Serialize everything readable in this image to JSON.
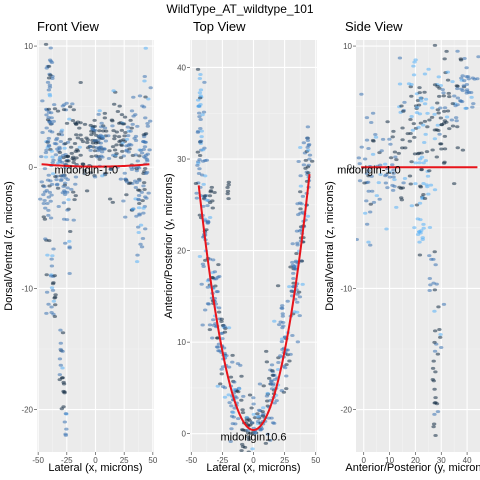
{
  "figure_title": "WildType_AT_wildtype_101",
  "chart_data": [
    {
      "type": "scatter",
      "title": "Front View",
      "xlabel": "Lateral (x, microns)",
      "ylabel": "Dorsal/Ventral (z, microns)",
      "xlim": [
        -51,
        51
      ],
      "ylim": [
        -23.5,
        10.5
      ],
      "xticks": [
        -50,
        -25,
        0,
        25,
        50
      ],
      "yticks": [
        10,
        0,
        -10,
        -20
      ],
      "grid": true,
      "annotation": {
        "text": "midorigin-1.0",
        "x": -8,
        "y": -0.2
      },
      "fit_curve": {
        "a": 9e-05,
        "b": 0,
        "c": 0.05,
        "x_range": [
          -47,
          47
        ]
      },
      "clusters": [
        {
          "cx": -42,
          "cy": 0,
          "sx": 3,
          "sy": 5,
          "n": 60,
          "shade": "mid"
        },
        {
          "cx": -40,
          "cy": 5,
          "sx": 1.5,
          "sy": 2.5,
          "n": 25,
          "shade": "mid"
        },
        {
          "cx": -32,
          "cy": 1,
          "sx": 5,
          "sy": 2.2,
          "n": 50,
          "shade": "mid"
        },
        {
          "cx": -25,
          "cy": -1.5,
          "sx": 3,
          "sy": 3,
          "n": 40,
          "shade": "mid"
        },
        {
          "cx": -18,
          "cy": 2,
          "sx": 5,
          "sy": 1.8,
          "n": 40,
          "shade": "dark"
        },
        {
          "cx": -5,
          "cy": 2,
          "sx": 6,
          "sy": 1.5,
          "n": 45,
          "shade": "dark"
        },
        {
          "cx": 5,
          "cy": 1.5,
          "sx": 6,
          "sy": 1.5,
          "n": 45,
          "shade": "mid"
        },
        {
          "cx": 18,
          "cy": 2.5,
          "sx": 5,
          "sy": 1.8,
          "n": 40,
          "shade": "dark"
        },
        {
          "cx": 30,
          "cy": 1,
          "sx": 5,
          "sy": 2,
          "n": 50,
          "shade": "mid"
        },
        {
          "cx": 38,
          "cy": -2,
          "sx": 3,
          "sy": 2.5,
          "n": 40,
          "shade": "mid"
        },
        {
          "cx": 43,
          "cy": 2,
          "sx": 2,
          "sy": 4,
          "n": 40,
          "shade": "mid"
        },
        {
          "cx": -38,
          "cy": -9,
          "sx": 1.2,
          "sy": 1.5,
          "n": 12,
          "shade": "mid"
        },
        {
          "cx": -36,
          "cy": -11,
          "sx": 1,
          "sy": 1.2,
          "n": 8,
          "shade": "dark"
        },
        {
          "cx": -30,
          "cy": -16,
          "sx": 1,
          "sy": 1.5,
          "n": 10,
          "shade": "mid"
        },
        {
          "cx": -28,
          "cy": -18.5,
          "sx": 0.8,
          "sy": 1.5,
          "n": 10,
          "shade": "dark"
        },
        {
          "cx": -26,
          "cy": -21,
          "sx": 0.6,
          "sy": 0.8,
          "n": 6,
          "shade": "mid"
        }
      ]
    },
    {
      "type": "scatter",
      "title": "Top View",
      "xlabel": "Lateral (x, microns)",
      "ylabel": "Anterior/Posterior (y, microns)",
      "xlim": [
        -51,
        51
      ],
      "ylim": [
        -2,
        43
      ],
      "xticks": [
        -50,
        -25,
        0,
        25,
        50
      ],
      "yticks": [
        0,
        10,
        20,
        30,
        40
      ],
      "grid": true,
      "annotation": {
        "text": "midorigin10.6",
        "x": 0,
        "y": -0.3
      },
      "fit_curve": {
        "a": 0.0138,
        "b": 0,
        "c": 0.4,
        "x_range": [
          -44,
          45
        ]
      },
      "clusters": [
        {
          "cx": -43,
          "cy": 31,
          "sx": 2,
          "sy": 4,
          "n": 40,
          "shade": "mid"
        },
        {
          "cx": -43,
          "cy": 38,
          "sx": 1,
          "sy": 2,
          "n": 12,
          "shade": "light"
        },
        {
          "cx": -38,
          "cy": 22,
          "sx": 2.5,
          "sy": 3,
          "n": 40,
          "shade": "mid"
        },
        {
          "cx": -32,
          "cy": 15,
          "sx": 2.5,
          "sy": 2.5,
          "n": 40,
          "shade": "mid"
        },
        {
          "cx": -25,
          "cy": 9,
          "sx": 2.5,
          "sy": 2.5,
          "n": 40,
          "shade": "mid"
        },
        {
          "cx": -15,
          "cy": 4,
          "sx": 3,
          "sy": 2,
          "n": 40,
          "shade": "mid"
        },
        {
          "cx": -5,
          "cy": 1,
          "sx": 3,
          "sy": 1.5,
          "n": 35,
          "shade": "dark"
        },
        {
          "cx": 5,
          "cy": 1.5,
          "sx": 3,
          "sy": 1.5,
          "n": 35,
          "shade": "mid"
        },
        {
          "cx": 15,
          "cy": 4.5,
          "sx": 3,
          "sy": 2,
          "n": 40,
          "shade": "mid"
        },
        {
          "cx": 25,
          "cy": 10,
          "sx": 2.5,
          "sy": 2.5,
          "n": 40,
          "shade": "mid"
        },
        {
          "cx": 33,
          "cy": 16,
          "sx": 2.5,
          "sy": 2.5,
          "n": 40,
          "shade": "mid"
        },
        {
          "cx": 39,
          "cy": 23,
          "sx": 2.5,
          "sy": 3,
          "n": 40,
          "shade": "mid"
        },
        {
          "cx": 44,
          "cy": 30,
          "sx": 1.5,
          "sy": 2,
          "n": 25,
          "shade": "mid"
        },
        {
          "cx": -33,
          "cy": 26,
          "sx": 1.5,
          "sy": 1,
          "n": 8,
          "shade": "dark"
        },
        {
          "cx": -20,
          "cy": 27,
          "sx": 1,
          "sy": 0.8,
          "n": 6,
          "shade": "dark"
        }
      ]
    },
    {
      "type": "scatter",
      "title": "Side View",
      "xlabel": "Anterior/Posterior (y, microns)",
      "ylabel": "Dorsal/Ventral (z, microns)",
      "xlim": [
        -3,
        45
      ],
      "ylim": [
        -23.5,
        10.5
      ],
      "xticks": [
        0,
        10,
        20,
        30,
        40
      ],
      "yticks": [
        10,
        0,
        -10,
        -20
      ],
      "grid": true,
      "annotation": {
        "text": "midorigin-1.0",
        "x": 2,
        "y": -0.2
      },
      "fit_curve": {
        "a": 0,
        "b": 0,
        "c": 0,
        "x_range": [
          -1,
          44
        ]
      },
      "clusters": [
        {
          "cx": 2,
          "cy": 0,
          "sx": 2.5,
          "sy": 2.5,
          "n": 40,
          "shade": "mid"
        },
        {
          "cx": 10,
          "cy": 0.5,
          "sx": 3,
          "sy": 2.5,
          "n": 40,
          "shade": "mid"
        },
        {
          "cx": 18,
          "cy": 2,
          "sx": 3,
          "sy": 3,
          "n": 45,
          "shade": "dark"
        },
        {
          "cx": 24,
          "cy": 3,
          "sx": 3,
          "sy": 3,
          "n": 50,
          "shade": "light"
        },
        {
          "cx": 30,
          "cy": 4,
          "sx": 3,
          "sy": 2.5,
          "n": 45,
          "shade": "dark"
        },
        {
          "cx": 36,
          "cy": 5.5,
          "sx": 3,
          "sy": 2,
          "n": 35,
          "shade": "mid"
        },
        {
          "cx": 40,
          "cy": 6.5,
          "sx": 2,
          "sy": 1.5,
          "n": 20,
          "shade": "mid"
        },
        {
          "cx": 22,
          "cy": -4,
          "sx": 2,
          "sy": 2,
          "n": 20,
          "shade": "light"
        },
        {
          "cx": 26,
          "cy": -9,
          "sx": 1,
          "sy": 1.5,
          "n": 10,
          "shade": "mid"
        },
        {
          "cx": 29,
          "cy": -13,
          "sx": 1,
          "sy": 1.5,
          "n": 10,
          "shade": "mid"
        },
        {
          "cx": 28,
          "cy": -16,
          "sx": 0.8,
          "sy": 1.5,
          "n": 8,
          "shade": "dark"
        },
        {
          "cx": 28,
          "cy": -19,
          "sx": 0.6,
          "sy": 1.2,
          "n": 6,
          "shade": "dark"
        },
        {
          "cx": 28,
          "cy": -21,
          "sx": 0.5,
          "sy": 0.6,
          "n": 4,
          "shade": "mid"
        }
      ]
    }
  ],
  "colors": {
    "panel_bg": "#ebebeb",
    "grid_major": "#ffffff",
    "grid_minor": "#f4f4f4",
    "fit_line": "#e8141b",
    "point_dark": "#132b43",
    "point_mid": "#3a72b2",
    "point_light": "#56b1f7"
  }
}
